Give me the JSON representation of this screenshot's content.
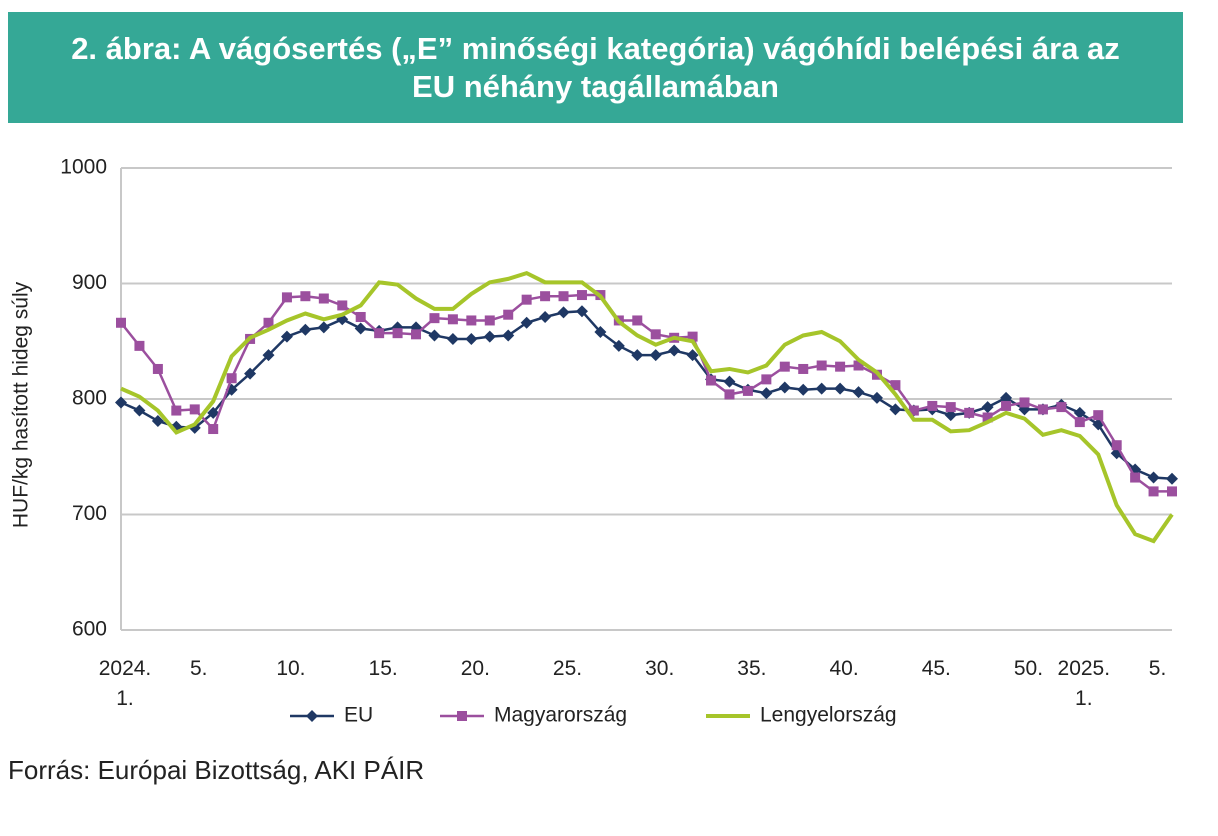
{
  "chart_data": {
    "type": "line",
    "title": "2. ábra: A vágósertés („E” minőségi kategória) vágóhídi belépési ára az EU néhány tagállamában",
    "y_label": "HUF/kg hasított hideg súly",
    "source": "Forrás: Európai Bizottság, AKI PÁIR",
    "categories": [
      "2024. 1.",
      null,
      null,
      null,
      "5.",
      null,
      null,
      null,
      null,
      "10.",
      null,
      null,
      null,
      null,
      "15.",
      null,
      null,
      null,
      null,
      "20.",
      null,
      null,
      null,
      null,
      "25.",
      null,
      null,
      null,
      null,
      "30.",
      null,
      null,
      null,
      null,
      "35.",
      null,
      null,
      null,
      null,
      "40.",
      null,
      null,
      null,
      null,
      "45.",
      null,
      null,
      null,
      null,
      "50.",
      null,
      null,
      "2025. 1.",
      null,
      null,
      null,
      "5.",
      null
    ],
    "series": [
      {
        "name": "EU",
        "color": "#1f3864",
        "marker": "diamond",
        "values": [
          797,
          790,
          781,
          776,
          775,
          788,
          808,
          822,
          838,
          854,
          860,
          862,
          869,
          861,
          859,
          862,
          862,
          855,
          852,
          852,
          854,
          855,
          866,
          871,
          875,
          876,
          858,
          846,
          838,
          838,
          842,
          838,
          817,
          815,
          808,
          805,
          810,
          808,
          809,
          809,
          806,
          801,
          791,
          790,
          791,
          786,
          788,
          793,
          801,
          791,
          791,
          795,
          788,
          778,
          753,
          739,
          732,
          731
        ]
      },
      {
        "name": "Magyarország",
        "color": "#9b4f9e",
        "marker": "square",
        "values": [
          866,
          846,
          826,
          790,
          791,
          774,
          818,
          852,
          866,
          888,
          889,
          887,
          881,
          871,
          857,
          857,
          856,
          870,
          869,
          868,
          868,
          873,
          886,
          889,
          889,
          890,
          890,
          868,
          868,
          856,
          853,
          854,
          816,
          804,
          807,
          817,
          828,
          826,
          829,
          828,
          829,
          821,
          812,
          790,
          794,
          793,
          788,
          784,
          794,
          797,
          791,
          793,
          780,
          786,
          760,
          732,
          720,
          720
        ]
      },
      {
        "name": "Lengyelország",
        "color": "#a6c52a",
        "marker": "none",
        "values": [
          809,
          802,
          790,
          771,
          778,
          798,
          837,
          853,
          860,
          868,
          874,
          869,
          873,
          881,
          901,
          899,
          887,
          878,
          878,
          891,
          901,
          904,
          909,
          901,
          901,
          901,
          889,
          867,
          855,
          847,
          853,
          850,
          824,
          826,
          823,
          829,
          847,
          855,
          858,
          850,
          834,
          823,
          804,
          782,
          782,
          772,
          773,
          780,
          788,
          783,
          769,
          773,
          768,
          752,
          708,
          683,
          677,
          700
        ]
      }
    ],
    "ylim": [
      600,
      1000
    ],
    "yticks": [
      600,
      700,
      800,
      900,
      1000
    ],
    "grid": true
  }
}
